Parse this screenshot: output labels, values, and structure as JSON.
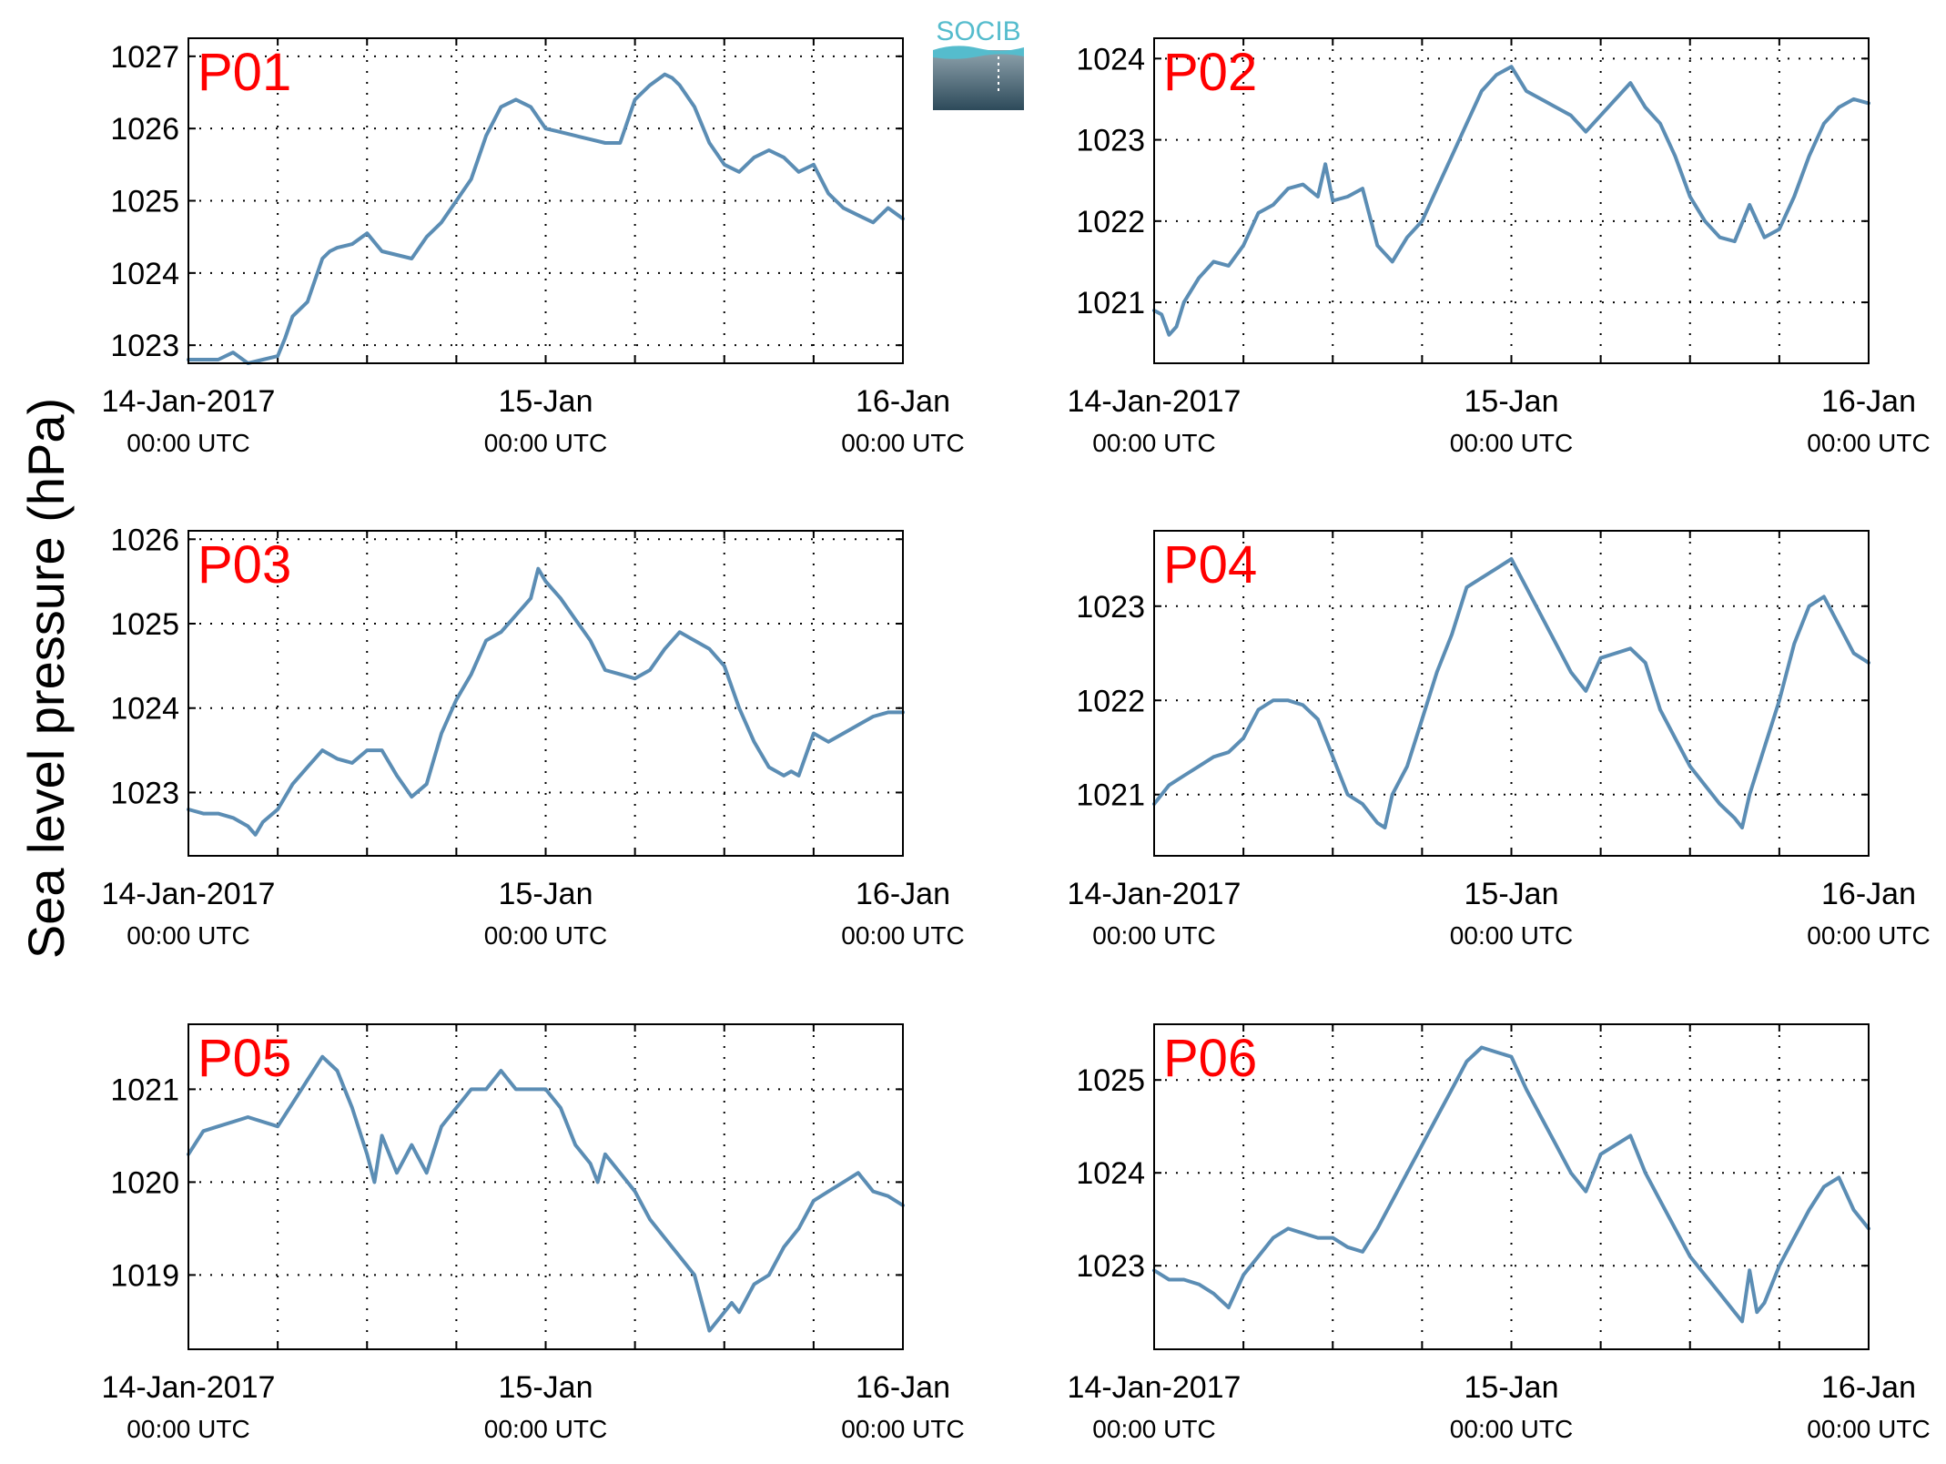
{
  "figure": {
    "ylabel": "Sea level pressure (hPa)",
    "logo_text": "SOCIB"
  },
  "colors": {
    "line": "#5b8db4",
    "panel_label": "#ff0000",
    "grid": "#000000",
    "logo_top": "#55bccd",
    "logo_bottom": "#2d4a5a"
  },
  "chart_data": [
    {
      "type": "line",
      "label": "P01",
      "x_ticks": [
        {
          "date": "14-Jan-2017",
          "time": "00:00 UTC"
        },
        {
          "date": "15-Jan",
          "time": "00:00 UTC"
        },
        {
          "date": "16-Jan",
          "time": "00:00 UTC"
        }
      ],
      "xlim_hours": [
        0,
        48
      ],
      "ylim": [
        1022.75,
        1027.25
      ],
      "yticks": [
        1023,
        1024,
        1025,
        1026,
        1027
      ],
      "grid": true,
      "hours": [
        0,
        2,
        3,
        4,
        5,
        6,
        6.5,
        7,
        8,
        9,
        9.5,
        10,
        11,
        12,
        13,
        14,
        15,
        16,
        17,
        18,
        19,
        20,
        21,
        22,
        23,
        24,
        25,
        26,
        27,
        28,
        29,
        30,
        31,
        32,
        32.5,
        33,
        34,
        35,
        36,
        37,
        38,
        39,
        40,
        41,
        42,
        43,
        44,
        45,
        46,
        47,
        48
      ],
      "values": [
        1022.8,
        1022.8,
        1022.9,
        1022.75,
        1022.8,
        1022.85,
        1023.1,
        1023.4,
        1023.6,
        1024.2,
        1024.3,
        1024.35,
        1024.4,
        1024.55,
        1024.3,
        1024.25,
        1024.2,
        1024.5,
        1024.7,
        1025.0,
        1025.3,
        1025.9,
        1026.3,
        1026.4,
        1026.3,
        1026.0,
        1025.95,
        1025.9,
        1025.85,
        1025.8,
        1025.8,
        1026.4,
        1026.6,
        1026.75,
        1026.7,
        1026.6,
        1026.3,
        1025.8,
        1025.5,
        1025.4,
        1025.6,
        1025.7,
        1025.6,
        1025.4,
        1025.5,
        1025.1,
        1024.9,
        1024.8,
        1024.7,
        1024.9,
        1024.75
      ]
    },
    {
      "type": "line",
      "label": "P02",
      "x_ticks": [
        {
          "date": "14-Jan-2017",
          "time": "00:00 UTC"
        },
        {
          "date": "15-Jan",
          "time": "00:00 UTC"
        },
        {
          "date": "16-Jan",
          "time": "00:00 UTC"
        }
      ],
      "xlim_hours": [
        0,
        48
      ],
      "ylim": [
        1020.25,
        1024.25
      ],
      "yticks": [
        1021,
        1022,
        1023,
        1024
      ],
      "grid": true,
      "hours": [
        0,
        0.5,
        1,
        1.5,
        2,
        3,
        4,
        5,
        6,
        7,
        8,
        9,
        10,
        11,
        11.5,
        12,
        13,
        14,
        15,
        16,
        17,
        18,
        19,
        20,
        21,
        22,
        23,
        24,
        25,
        26,
        27,
        28,
        29,
        30,
        31,
        32,
        33,
        34,
        35,
        36,
        37,
        38,
        39,
        40,
        41,
        42,
        43,
        44,
        45,
        46,
        47,
        48
      ],
      "values": [
        1020.9,
        1020.85,
        1020.6,
        1020.7,
        1021.0,
        1021.3,
        1021.5,
        1021.45,
        1021.7,
        1022.1,
        1022.2,
        1022.4,
        1022.45,
        1022.3,
        1022.7,
        1022.25,
        1022.3,
        1022.4,
        1021.7,
        1021.5,
        1021.8,
        1022.0,
        1022.4,
        1022.8,
        1023.2,
        1023.6,
        1023.8,
        1023.9,
        1023.6,
        1023.5,
        1023.4,
        1023.3,
        1023.1,
        1023.3,
        1023.5,
        1023.7,
        1023.4,
        1023.2,
        1022.8,
        1022.3,
        1022.0,
        1021.8,
        1021.75,
        1022.2,
        1021.8,
        1021.9,
        1022.3,
        1022.8,
        1023.2,
        1023.4,
        1023.5,
        1023.45
      ]
    },
    {
      "type": "line",
      "label": "P03",
      "x_ticks": [
        {
          "date": "14-Jan-2017",
          "time": "00:00 UTC"
        },
        {
          "date": "15-Jan",
          "time": "00:00 UTC"
        },
        {
          "date": "16-Jan",
          "time": "00:00 UTC"
        }
      ],
      "xlim_hours": [
        0,
        48
      ],
      "ylim": [
        1022.25,
        1026.1
      ],
      "yticks": [
        1023,
        1024,
        1025,
        1026
      ],
      "grid": true,
      "hours": [
        0,
        1,
        2,
        3,
        4,
        4.5,
        5,
        6,
        7,
        8,
        9,
        10,
        11,
        12,
        13,
        14,
        15,
        16,
        17,
        18,
        19,
        20,
        21,
        22,
        23,
        23.5,
        24,
        25,
        26,
        27,
        28,
        29,
        30,
        31,
        32,
        33,
        34,
        35,
        36,
        37,
        38,
        39,
        40,
        40.5,
        41,
        42,
        43,
        44,
        45,
        46,
        47,
        48
      ],
      "values": [
        1022.8,
        1022.75,
        1022.75,
        1022.7,
        1022.6,
        1022.5,
        1022.65,
        1022.8,
        1023.1,
        1023.3,
        1023.5,
        1023.4,
        1023.35,
        1023.5,
        1023.5,
        1023.2,
        1022.95,
        1023.1,
        1023.7,
        1024.1,
        1024.4,
        1024.8,
        1024.9,
        1025.1,
        1025.3,
        1025.65,
        1025.5,
        1025.3,
        1025.05,
        1024.8,
        1024.45,
        1024.4,
        1024.35,
        1024.45,
        1024.7,
        1024.9,
        1024.8,
        1024.7,
        1024.5,
        1024.0,
        1023.6,
        1023.3,
        1023.2,
        1023.25,
        1023.2,
        1023.7,
        1023.6,
        1023.7,
        1023.8,
        1023.9,
        1023.95,
        1023.95
      ]
    },
    {
      "type": "line",
      "label": "P04",
      "x_ticks": [
        {
          "date": "14-Jan-2017",
          "time": "00:00 UTC"
        },
        {
          "date": "15-Jan",
          "time": "00:00 UTC"
        },
        {
          "date": "16-Jan",
          "time": "00:00 UTC"
        }
      ],
      "xlim_hours": [
        0,
        48
      ],
      "ylim": [
        1020.35,
        1023.8
      ],
      "yticks": [
        1021,
        1022,
        1023
      ],
      "grid": true,
      "hours": [
        0,
        1,
        2,
        3,
        4,
        5,
        6,
        7,
        8,
        9,
        10,
        11,
        12,
        13,
        14,
        15,
        15.5,
        16,
        17,
        18,
        19,
        20,
        21,
        22,
        23,
        24,
        25,
        26,
        27,
        28,
        29,
        30,
        31,
        32,
        33,
        34,
        35,
        36,
        37,
        38,
        39,
        39.5,
        40,
        41,
        42,
        43,
        44,
        45,
        46,
        47,
        48
      ],
      "values": [
        1020.9,
        1021.1,
        1021.2,
        1021.3,
        1021.4,
        1021.45,
        1021.6,
        1021.9,
        1022.0,
        1022.0,
        1021.95,
        1021.8,
        1021.4,
        1021.0,
        1020.9,
        1020.7,
        1020.65,
        1021.0,
        1021.3,
        1021.8,
        1022.3,
        1022.7,
        1023.2,
        1023.3,
        1023.4,
        1023.5,
        1023.2,
        1022.9,
        1022.6,
        1022.3,
        1022.1,
        1022.45,
        1022.5,
        1022.55,
        1022.4,
        1021.9,
        1021.6,
        1021.3,
        1021.1,
        1020.9,
        1020.75,
        1020.65,
        1021.0,
        1021.5,
        1022.0,
        1022.6,
        1023.0,
        1023.1,
        1022.8,
        1022.5,
        1022.4
      ]
    },
    {
      "type": "line",
      "label": "P05",
      "x_ticks": [
        {
          "date": "14-Jan-2017",
          "time": "00:00 UTC"
        },
        {
          "date": "15-Jan",
          "time": "00:00 UTC"
        },
        {
          "date": "16-Jan",
          "time": "00:00 UTC"
        }
      ],
      "xlim_hours": [
        0,
        48
      ],
      "ylim": [
        1018.2,
        1021.7
      ],
      "yticks": [
        1019,
        1020,
        1021
      ],
      "grid": true,
      "hours": [
        0,
        1,
        2,
        3,
        4,
        5,
        6,
        7,
        8,
        9,
        10,
        11,
        12,
        12.5,
        13,
        14,
        15,
        16,
        17,
        18,
        19,
        20,
        21,
        22,
        23,
        24,
        25,
        26,
        27,
        27.5,
        28,
        29,
        30,
        31,
        32,
        33,
        34,
        35,
        36,
        36.5,
        37,
        38,
        39,
        40,
        41,
        42,
        43,
        44,
        45,
        46,
        47,
        48
      ],
      "values": [
        1020.3,
        1020.55,
        1020.6,
        1020.65,
        1020.7,
        1020.65,
        1020.6,
        1020.85,
        1021.1,
        1021.35,
        1021.2,
        1020.8,
        1020.3,
        1020.0,
        1020.5,
        1020.1,
        1020.4,
        1020.1,
        1020.6,
        1020.8,
        1021.0,
        1021.0,
        1021.2,
        1021.0,
        1021.0,
        1021.0,
        1020.8,
        1020.4,
        1020.2,
        1020.0,
        1020.3,
        1020.1,
        1019.9,
        1019.6,
        1019.4,
        1019.2,
        1019.0,
        1018.4,
        1018.6,
        1018.7,
        1018.6,
        1018.9,
        1019.0,
        1019.3,
        1019.5,
        1019.8,
        1019.9,
        1020.0,
        1020.1,
        1019.9,
        1019.85,
        1019.75
      ]
    },
    {
      "type": "line",
      "label": "P06",
      "x_ticks": [
        {
          "date": "14-Jan-2017",
          "time": "00:00 UTC"
        },
        {
          "date": "15-Jan",
          "time": "00:00 UTC"
        },
        {
          "date": "16-Jan",
          "time": "00:00 UTC"
        }
      ],
      "xlim_hours": [
        0,
        48
      ],
      "ylim": [
        1022.1,
        1025.6
      ],
      "yticks": [
        1023,
        1024,
        1025
      ],
      "grid": true,
      "hours": [
        0,
        1,
        2,
        3,
        4,
        5,
        6,
        7,
        8,
        9,
        10,
        11,
        12,
        13,
        14,
        15,
        16,
        17,
        18,
        19,
        20,
        21,
        22,
        23,
        24,
        25,
        26,
        27,
        28,
        29,
        30,
        31,
        32,
        33,
        34,
        35,
        36,
        37,
        38,
        39,
        39.5,
        40,
        40.5,
        41,
        42,
        43,
        44,
        45,
        46,
        47,
        48
      ],
      "values": [
        1022.95,
        1022.85,
        1022.85,
        1022.8,
        1022.7,
        1022.55,
        1022.9,
        1023.1,
        1023.3,
        1023.4,
        1023.35,
        1023.3,
        1023.3,
        1023.2,
        1023.15,
        1023.4,
        1023.7,
        1024.0,
        1024.3,
        1024.6,
        1024.9,
        1025.2,
        1025.35,
        1025.3,
        1025.25,
        1024.9,
        1024.6,
        1024.3,
        1024.0,
        1023.8,
        1024.2,
        1024.3,
        1024.4,
        1024.0,
        1023.7,
        1023.4,
        1023.1,
        1022.9,
        1022.7,
        1022.5,
        1022.4,
        1022.95,
        1022.5,
        1022.6,
        1023.0,
        1023.3,
        1023.6,
        1023.85,
        1023.95,
        1023.6,
        1023.4
      ]
    }
  ]
}
